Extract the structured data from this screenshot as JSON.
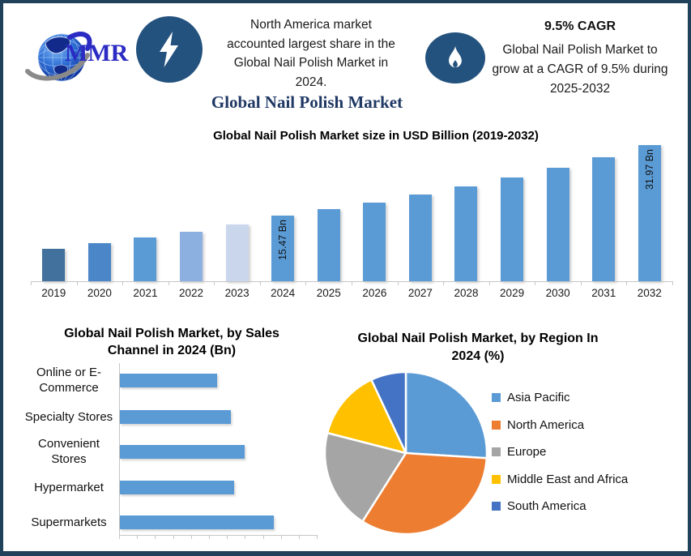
{
  "colors": {
    "frame_border": "#1F4159",
    "icon_navy": "#24527E",
    "title_navy": "#1F3864",
    "logo_blue": "#2B2BC4",
    "bar_blue": "#5B9BD5",
    "axis_gray": "#C6C6C6"
  },
  "header": {
    "logo_text": "MMR",
    "highlight_lines": [
      "North America market",
      "accounted largest share in the",
      "Global Nail Polish Market in",
      "2024."
    ],
    "main_title": "Global Nail Polish Market",
    "cagr_heading": "9.5% CAGR",
    "cagr_lines": [
      "Global Nail Polish Market to",
      "grow at a CAGR of 9.5% during",
      "2025-2032"
    ]
  },
  "chart_data": [
    {
      "id": "market-size-column-chart",
      "type": "bar",
      "title": "Global Nail Polish Market size in USD Billion (2019-2032)",
      "ylabel": "USD Billion",
      "categories": [
        "2019",
        "2020",
        "2021",
        "2022",
        "2023",
        "2024",
        "2025",
        "2026",
        "2027",
        "2028",
        "2029",
        "2030",
        "2031",
        "2032"
      ],
      "values": [
        7.6,
        8.9,
        10.2,
        11.7,
        13.4,
        15.47,
        16.94,
        18.55,
        20.31,
        22.24,
        24.35,
        26.66,
        29.2,
        31.97
      ],
      "value_note": "only 2024 and 2032 carry data labels; other values estimated from bar heights / stated 9.5% CAGR",
      "data_labels": [
        {
          "category": "2024",
          "label": "15.47 Bn"
        },
        {
          "category": "2032",
          "label": "31.97 Bn"
        }
      ],
      "ylim": [
        0,
        32
      ],
      "grid": false,
      "legend": false,
      "bar_colors": [
        "#41719C",
        "#4A86C8",
        "#5B9BD5",
        "#8CB0DF",
        "#CAD6EC",
        "#5B9BD5",
        "#5B9BD5",
        "#5B9BD5",
        "#5B9BD5",
        "#5B9BD5",
        "#5B9BD5",
        "#5B9BD5",
        "#5B9BD5",
        "#5B9BD5"
      ]
    },
    {
      "id": "sales-channel-bar-chart",
      "type": "bar",
      "orientation": "horizontal",
      "title": "Global Nail Polish Market, by Sales Channel  in 2024 (Bn)",
      "title_lines": [
        "Global Nail Polish Market, by Sales",
        "Channel  in 2024 (Bn)"
      ],
      "categories": [
        "Online or E-Commerce",
        "Specialty Stores",
        "Convenient Stores",
        "Hypermarket",
        "Supermarkets"
      ],
      "category_lines": [
        [
          "Online or E-",
          "Commerce"
        ],
        [
          "Specialty Stores"
        ],
        [
          "Convenient",
          "Stores"
        ],
        [
          "Hypermarket"
        ],
        [
          "Supermarkets"
        ]
      ],
      "values_pct_of_max": [
        63,
        72,
        81,
        74,
        100
      ],
      "value_note": "no numeric labels in source; bar lengths expressed relative to longest bar (Supermarkets = 100)",
      "bar_color": "#5B9BD5",
      "grid": false,
      "legend": false
    },
    {
      "id": "region-pie-chart",
      "type": "pie",
      "title": "Global Nail Polish Market, by Region In 2024 (%)",
      "title_lines": [
        "Global Nail Polish Market, by Region In",
        "2024 (%)"
      ],
      "labels": [
        "Asia Pacific",
        "North America",
        "Europe",
        "Middle East and Africa",
        "South America"
      ],
      "values_pct": [
        26,
        33,
        20,
        14,
        7
      ],
      "value_note": "slice percentages estimated from angles; no data labels shown in source",
      "colors": [
        "#5B9BD5",
        "#ED7D31",
        "#A5A5A5",
        "#FFC000",
        "#4472C4"
      ],
      "legend_position": "right",
      "start_angle_deg": 0,
      "direction": "clockwise"
    }
  ]
}
